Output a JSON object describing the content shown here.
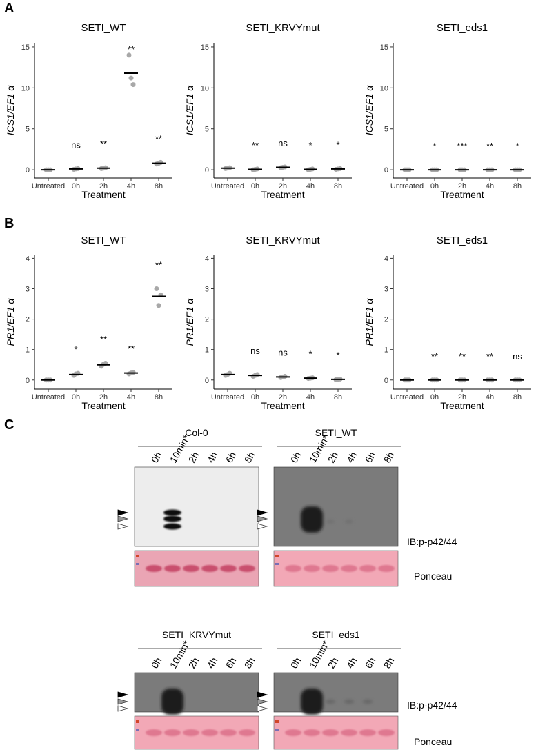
{
  "panels": [
    "A",
    "B",
    "C"
  ],
  "chart_data": [
    {
      "type": "strip",
      "title": "SETI_WT",
      "ylabel": "ICS1/EF1 α",
      "xlabel": "Treatment",
      "categories": [
        "Untreated",
        "0h",
        "2h",
        "4h",
        "8h"
      ],
      "values": [
        0,
        0.1,
        0.2,
        11.8,
        0.8
      ],
      "points": [
        [
          0,
          0,
          0
        ],
        [
          0.05,
          0.1,
          0.15
        ],
        [
          0.15,
          0.2,
          0.25
        ],
        [
          14,
          11.2,
          10.4
        ],
        [
          0.7,
          0.8,
          0.9
        ]
      ],
      "significance": [
        null,
        "ns",
        "**",
        "**",
        "**"
      ],
      "ylim": [
        -1,
        15.5
      ],
      "yticks": [
        0,
        5,
        10,
        15
      ]
    },
    {
      "type": "strip",
      "title": "SETI_KRVYmut",
      "ylabel": "ICS1/EF1 α",
      "xlabel": "Treatment",
      "categories": [
        "Untreated",
        "0h",
        "2h",
        "4h",
        "8h"
      ],
      "values": [
        0.2,
        0.05,
        0.3,
        0.05,
        0.1
      ],
      "points": [
        [
          0.15,
          0.2,
          0.25
        ],
        [
          0,
          0.05,
          0.1
        ],
        [
          0.25,
          0.3,
          0.35
        ],
        [
          0,
          0.05,
          0.1
        ],
        [
          0.05,
          0.1,
          0.15
        ]
      ],
      "significance": [
        null,
        "**",
        "ns",
        "*",
        "*"
      ],
      "ylim": [
        -1,
        15.5
      ],
      "yticks": [
        0,
        5,
        10,
        15
      ]
    },
    {
      "type": "strip",
      "title": "SETI_eds1",
      "ylabel": "ICS1/EF1 α",
      "xlabel": "Treatment",
      "categories": [
        "Untreated",
        "0h",
        "2h",
        "4h",
        "8h"
      ],
      "values": [
        0,
        0,
        0,
        0,
        0
      ],
      "points": [
        [
          0,
          0,
          0
        ],
        [
          0,
          0,
          0
        ],
        [
          0,
          0,
          0
        ],
        [
          0,
          0,
          0
        ],
        [
          0,
          0,
          0
        ]
      ],
      "significance": [
        null,
        "*",
        "***",
        "**",
        "*"
      ],
      "ylim": [
        -1,
        15.5
      ],
      "yticks": [
        0,
        5,
        10,
        15
      ]
    },
    {
      "type": "strip",
      "title": "SETI_WT",
      "ylabel": "PR1/EF1 α",
      "xlabel": "Treatment",
      "categories": [
        "Untreated",
        "0h",
        "2h",
        "4h",
        "8h"
      ],
      "values": [
        0,
        0.18,
        0.5,
        0.23,
        2.75
      ],
      "points": [
        [
          0,
          0,
          0
        ],
        [
          0.15,
          0.2,
          0.22
        ],
        [
          0.45,
          0.52,
          0.55
        ],
        [
          0.2,
          0.23,
          0.25
        ],
        [
          3.0,
          2.45,
          2.8
        ]
      ],
      "significance": [
        null,
        "*",
        "**",
        "**",
        "**"
      ],
      "ylim": [
        -0.3,
        4.1
      ],
      "yticks": [
        0,
        1,
        2,
        3,
        4
      ]
    },
    {
      "type": "strip",
      "title": "SETI_KRVYmut",
      "ylabel": "PR1/EF1 α",
      "xlabel": "Treatment",
      "categories": [
        "Untreated",
        "0h",
        "2h",
        "4h",
        "8h"
      ],
      "values": [
        0.18,
        0.15,
        0.1,
        0.06,
        0.02
      ],
      "points": [
        [
          0.15,
          0.18,
          0.22
        ],
        [
          0.12,
          0.15,
          0.18
        ],
        [
          0.08,
          0.1,
          0.12
        ],
        [
          0.05,
          0.06,
          0.07
        ],
        [
          0.01,
          0.02,
          0.03
        ]
      ],
      "significance": [
        null,
        "ns",
        "ns",
        "*",
        "*"
      ],
      "ylim": [
        -0.3,
        4.1
      ],
      "yticks": [
        0,
        1,
        2,
        3,
        4
      ]
    },
    {
      "type": "strip",
      "title": "SETI_eds1",
      "ylabel": "PR1/EF1 α",
      "xlabel": "Treatment",
      "categories": [
        "Untreated",
        "0h",
        "2h",
        "4h",
        "8h"
      ],
      "values": [
        0,
        0,
        0,
        0,
        0
      ],
      "points": [
        [
          0,
          0,
          0
        ],
        [
          0,
          0,
          0
        ],
        [
          0,
          0,
          0
        ],
        [
          0,
          0,
          0
        ],
        [
          0,
          0,
          0
        ]
      ],
      "significance": [
        null,
        "**",
        "**",
        "**",
        "ns"
      ],
      "ylim": [
        -0.3,
        4.1
      ],
      "yticks": [
        0,
        1,
        2,
        3,
        4
      ]
    }
  ],
  "panel_c": {
    "blots": [
      {
        "title": "Col-0",
        "lanes": [
          "0h",
          "10min*",
          "2h",
          "4h",
          "6h",
          "8h"
        ]
      },
      {
        "title": "SETI_WT",
        "lanes": [
          "0h",
          "10min*",
          "2h",
          "4h",
          "6h",
          "8h"
        ]
      },
      {
        "title": "SETI_KRVYmut",
        "lanes": [
          "0h",
          "10min*",
          "2h",
          "4h",
          "6h",
          "8h"
        ]
      },
      {
        "title": "SETI_eds1",
        "lanes": [
          "0h",
          "10min*",
          "2h",
          "4h",
          "6h",
          "8h"
        ]
      }
    ],
    "ib_label": "IB:p-p42/44",
    "ponceau_label": "Ponceau"
  }
}
